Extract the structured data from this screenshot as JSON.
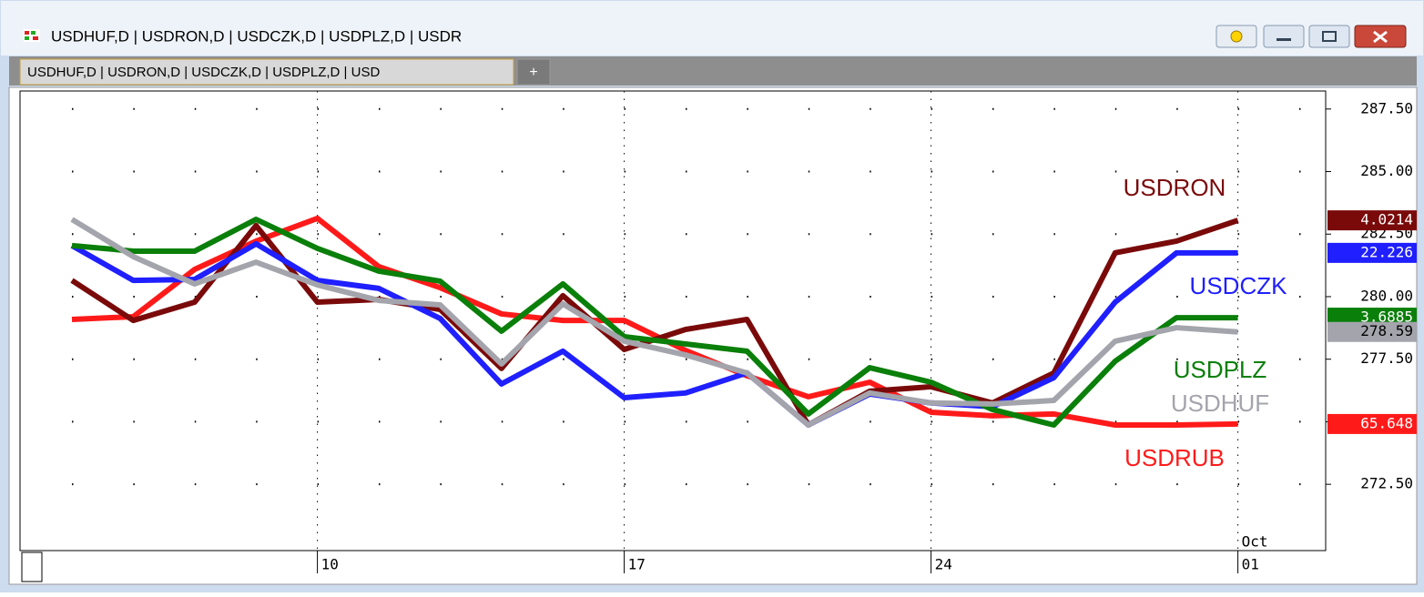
{
  "window": {
    "title": "USDHUF,D | USDRON,D | USDCZK,D | USDPLZ,D | USDR",
    "tab": "USDHUF,D | USDRON,D | USDCZK,D | USDPLZ,D | USD",
    "new_tab": "+"
  },
  "chart_data": {
    "type": "line",
    "categories": [
      null,
      null,
      null,
      null,
      "10",
      null,
      null,
      null,
      null,
      "17",
      null,
      null,
      null,
      null,
      "24",
      null,
      null,
      null,
      null,
      "01"
    ],
    "month_label": "Oct",
    "ylim": [
      269.85,
      288.22
    ],
    "yticks": [
      {
        "value": 272.5,
        "label": "272.50"
      },
      {
        "value": 275,
        "label": "275.00"
      },
      {
        "value": 277.5,
        "label": "277.50"
      },
      {
        "value": 280,
        "label": "280.00"
      },
      {
        "value": 282.5,
        "label": "282.50"
      },
      {
        "value": 285,
        "label": "285.00"
      },
      {
        "value": 287.5,
        "label": "287.50"
      }
    ],
    "grid": true,
    "series": [
      {
        "name": "USDRUB",
        "color": "#ff1a1a",
        "last_price": 65.648,
        "values": [
          279.09,
          279.2,
          281.09,
          282.22,
          283.13,
          281.2,
          280.36,
          279.31,
          279.05,
          279.05,
          277.85,
          276.84,
          276.0,
          276.58,
          275.38,
          275.24,
          275.31,
          274.87,
          274.87,
          274.91
        ]
      },
      {
        "name": "USDRON",
        "color": "#7a0a0a",
        "last_price": 4.0214,
        "values": [
          280.65,
          279.05,
          279.78,
          282.84,
          279.78,
          279.89,
          279.49,
          277.13,
          280.04,
          277.89,
          278.69,
          279.09,
          274.87,
          276.22,
          276.4,
          275.75,
          276.95,
          281.75,
          282.22,
          283.05
        ]
      },
      {
        "name": "USDCZK",
        "color": "#1f1fff",
        "last_price": 22.226,
        "values": [
          282.04,
          280.65,
          280.69,
          282.11,
          280.65,
          280.33,
          279.13,
          276.51,
          277.82,
          275.96,
          276.15,
          276.95,
          274.87,
          276.11,
          275.75,
          275.6,
          276.76,
          279.78,
          281.75,
          281.75
        ]
      },
      {
        "name": "USDPLZ",
        "color": "#0a7f0a",
        "last_price": 3.6885,
        "values": [
          282.04,
          281.82,
          281.82,
          283.09,
          281.93,
          281.02,
          280.62,
          278.62,
          280.51,
          278.4,
          278.11,
          277.82,
          275.31,
          277.16,
          276.58,
          275.49,
          274.87,
          277.42,
          279.16,
          279.16
        ]
      },
      {
        "name": "USDHUF",
        "color": "#a4a4ac",
        "last_price": 278.59,
        "values": [
          283.09,
          281.6,
          280.51,
          281.38,
          280.47,
          279.85,
          279.67,
          277.31,
          279.71,
          278.22,
          277.67,
          276.95,
          274.87,
          276.15,
          275.75,
          275.71,
          275.85,
          278.22,
          278.76,
          278.59
        ]
      }
    ]
  }
}
